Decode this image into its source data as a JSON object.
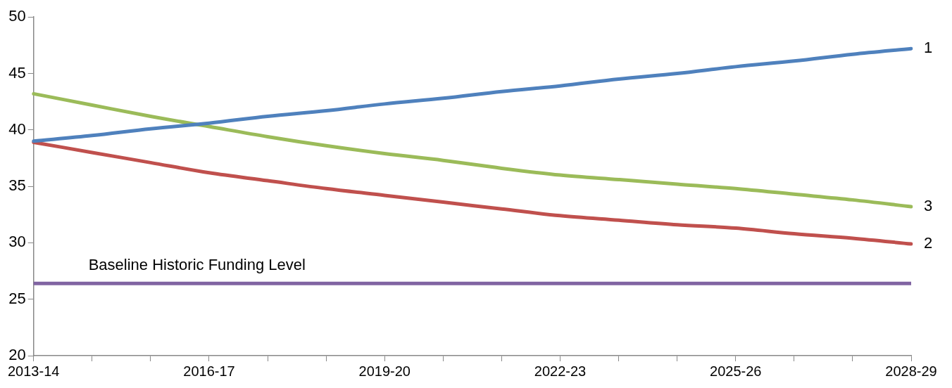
{
  "chart_data": {
    "type": "line",
    "categories": [
      "2013-14",
      null,
      null,
      "2016-17",
      null,
      null,
      "2019-20",
      null,
      null,
      "2022-23",
      null,
      null,
      "2025-26",
      null,
      null,
      "2028-29"
    ],
    "series": [
      {
        "name": "1",
        "color": "#4f81bd",
        "values": [
          39.0,
          39.5,
          40.1,
          40.6,
          41.2,
          41.7,
          42.3,
          42.8,
          43.4,
          43.9,
          44.5,
          45.0,
          45.6,
          46.1,
          46.7,
          47.2
        ]
      },
      {
        "name": "2",
        "color": "#c0504d",
        "values": [
          38.9,
          38.0,
          37.1,
          36.2,
          35.5,
          34.8,
          34.2,
          33.6,
          33.0,
          32.4,
          32.0,
          31.6,
          31.3,
          30.8,
          30.4,
          29.9
        ]
      },
      {
        "name": "3",
        "color": "#9bbb59",
        "values": [
          43.2,
          42.2,
          41.2,
          40.3,
          39.4,
          38.6,
          37.9,
          37.3,
          36.6,
          36.0,
          35.6,
          35.2,
          34.8,
          34.3,
          33.8,
          33.2
        ]
      }
    ],
    "ref_lines": [
      {
        "axis": "y",
        "value": 26.4,
        "label": "Baseline Historic Funding Level",
        "color": "#8064a2"
      }
    ],
    "ylim": [
      20,
      50
    ],
    "yticks": [
      20,
      25,
      30,
      35,
      40,
      45,
      50
    ],
    "grid": false,
    "legend": false,
    "marker": "none",
    "line_style": "solid"
  }
}
